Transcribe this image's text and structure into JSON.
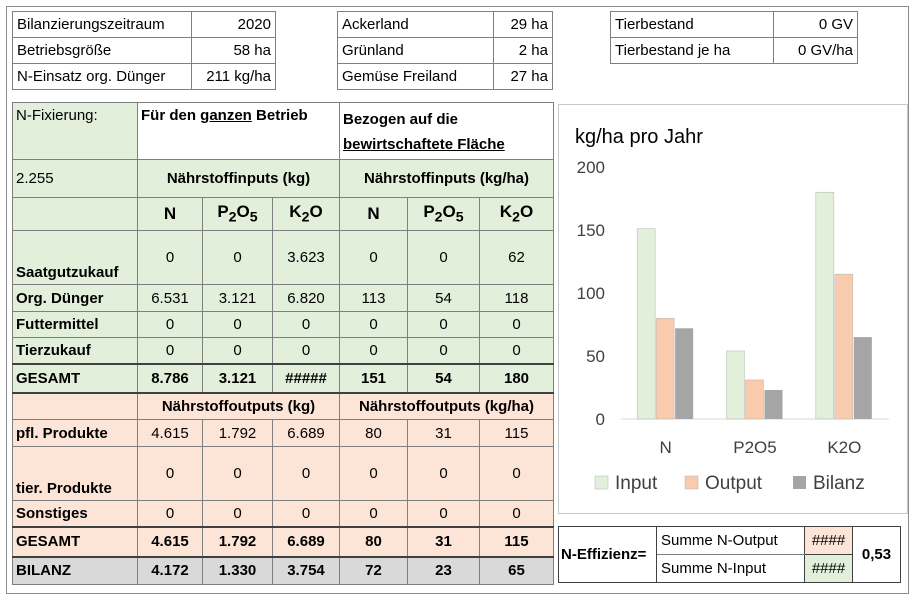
{
  "summary": {
    "left": [
      {
        "label": "Bilanzierungszeitraum",
        "value": "2020"
      },
      {
        "label": "Betriebsgröße",
        "value": "58 ha"
      },
      {
        "label": "N-Einsatz org. Dünger",
        "value": "211 kg/ha"
      }
    ],
    "middle": [
      {
        "label": "Ackerland",
        "value": "29 ha"
      },
      {
        "label": "Grünland",
        "value": "2 ha"
      },
      {
        "label": "Gemüse Freiland",
        "value": "27 ha"
      }
    ],
    "right": [
      {
        "label": "Tierbestand",
        "value": "0 GV"
      },
      {
        "label": "Tierbestand je ha",
        "value": "0 GV/ha"
      }
    ]
  },
  "table": {
    "nfix_label": "N-Fixierung:",
    "nfix_value": "2.255",
    "header_total_pre": "Für den ",
    "header_total_u": "ganzen",
    "header_total_post": " Betrieb",
    "header_area_1": "Bezogen auf die",
    "header_area_2": "bewirtschaftete Fläche",
    "inputs_kg": "Nährstoffinputs (kg)",
    "inputs_kgha": "Nährstoffinputs (kg/ha)",
    "outputs_kg": "Nährstoffoutputs (kg)",
    "outputs_kgha": "Nährstoffoutputs (kg/ha)",
    "col_n": "N",
    "col_p_base": "P",
    "col_p_s1": "2",
    "col_p_mid": "O",
    "col_p_s2": "5",
    "col_k_base": "K",
    "col_k_s1": "2",
    "col_k_mid": "O",
    "input_rows": [
      {
        "label": "Saatgutzukauf",
        "v": [
          "0",
          "0",
          "3.623",
          "0",
          "0",
          "62"
        ]
      },
      {
        "label": "Org. Dünger",
        "v": [
          "6.531",
          "3.121",
          "6.820",
          "113",
          "54",
          "118"
        ]
      },
      {
        "label": "Futtermittel",
        "v": [
          "0",
          "0",
          "0",
          "0",
          "0",
          "0"
        ]
      },
      {
        "label": "Tierzukauf",
        "v": [
          "0",
          "0",
          "0",
          "0",
          "0",
          "0"
        ]
      }
    ],
    "input_total": {
      "label": "GESAMT",
      "v": [
        "8.786",
        "3.121",
        "#####",
        "151",
        "54",
        "180"
      ]
    },
    "output_rows": [
      {
        "label": "pfl. Produkte",
        "v": [
          "4.615",
          "1.792",
          "6.689",
          "80",
          "31",
          "115"
        ]
      },
      {
        "label": "tier. Produkte",
        "v": [
          "0",
          "0",
          "0",
          "0",
          "0",
          "0"
        ]
      },
      {
        "label": "Sonstiges",
        "v": [
          "0",
          "0",
          "0",
          "0",
          "0",
          "0"
        ]
      }
    ],
    "output_total": {
      "label": "GESAMT",
      "v": [
        "4.615",
        "1.792",
        "6.689",
        "80",
        "31",
        "115"
      ]
    },
    "bilanz": {
      "label": "BILANZ",
      "v": [
        "4.172",
        "1.330",
        "3.754",
        "72",
        "23",
        "65"
      ]
    }
  },
  "chart_data": {
    "type": "bar",
    "title": "kg/ha pro Jahr",
    "categories": [
      "N",
      "P2O5",
      "K2O"
    ],
    "series": [
      {
        "name": "Input",
        "values": [
          151,
          54,
          180
        ],
        "color": "#e2efda"
      },
      {
        "name": "Output",
        "values": [
          80,
          31,
          115
        ],
        "color": "#f8cbad"
      },
      {
        "name": "Bilanz",
        "values": [
          72,
          23,
          65
        ],
        "color": "#a5a5a5"
      }
    ],
    "ylim": [
      0,
      200
    ],
    "yticks": [
      "0",
      "50",
      "100",
      "150",
      "200"
    ],
    "grid": false,
    "legend": "bottom"
  },
  "efficiency": {
    "label": "N-Effizienz=",
    "output_label": "Summe N-Output",
    "output_value": "####",
    "input_label": "Summe N-Input",
    "input_value": "####",
    "result": "0,53"
  }
}
